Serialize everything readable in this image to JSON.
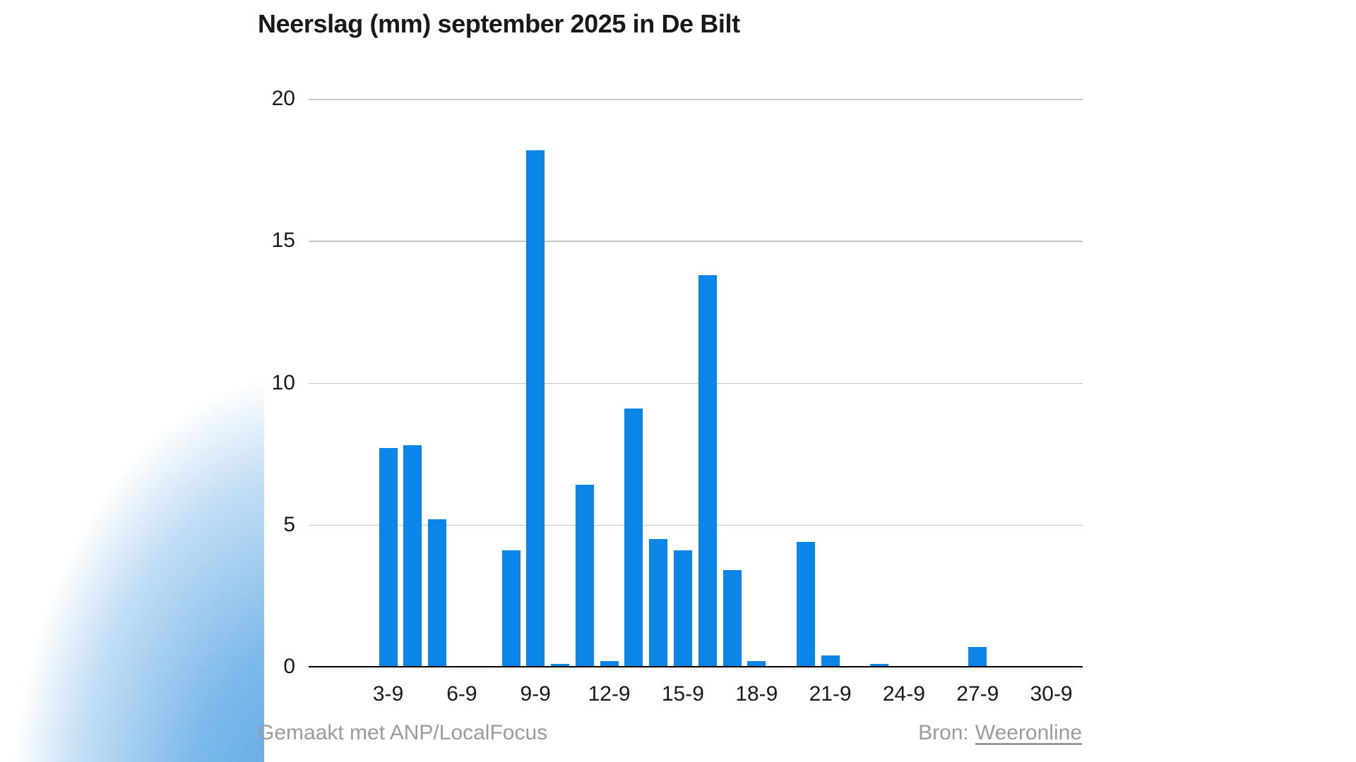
{
  "title": "Neerslag (mm) september 2025 in De Bilt",
  "footer": {
    "credit": "Gemaakt met ANP/LocalFocus",
    "source_label": "Bron:",
    "source_link": "Weeronline"
  },
  "colors": {
    "bar": "#0b85e8",
    "gridline": "#c6c6c6",
    "axis": "#000000",
    "text": "#191919",
    "muted_text": "#9b9b9b",
    "background_blob": "#58a6e4"
  },
  "chart_data": {
    "type": "bar",
    "title": "Neerslag (mm) september 2025 in De Bilt",
    "xlabel": "",
    "ylabel": "",
    "ylim": [
      0,
      20
    ],
    "y_ticks": [
      0,
      5,
      10,
      15,
      20
    ],
    "grid": true,
    "legend": false,
    "x_tick_every": 3,
    "categories": [
      "1-9",
      "2-9",
      "3-9",
      "4-9",
      "5-9",
      "6-9",
      "7-9",
      "8-9",
      "9-9",
      "10-9",
      "11-9",
      "12-9",
      "13-9",
      "14-9",
      "15-9",
      "16-9",
      "17-9",
      "18-9",
      "19-9",
      "20-9",
      "21-9",
      "22-9",
      "23-9",
      "24-9",
      "25-9",
      "26-9",
      "27-9",
      "28-9",
      "29-9",
      "30-9"
    ],
    "values": [
      0,
      0,
      7.7,
      7.8,
      5.2,
      0,
      0,
      4.1,
      18.2,
      0.1,
      6.4,
      0.2,
      9.1,
      4.5,
      4.1,
      13.8,
      3.4,
      0.2,
      0,
      4.4,
      0.4,
      0,
      0.1,
      0,
      0,
      0,
      0.7,
      0,
      0,
      0
    ]
  }
}
